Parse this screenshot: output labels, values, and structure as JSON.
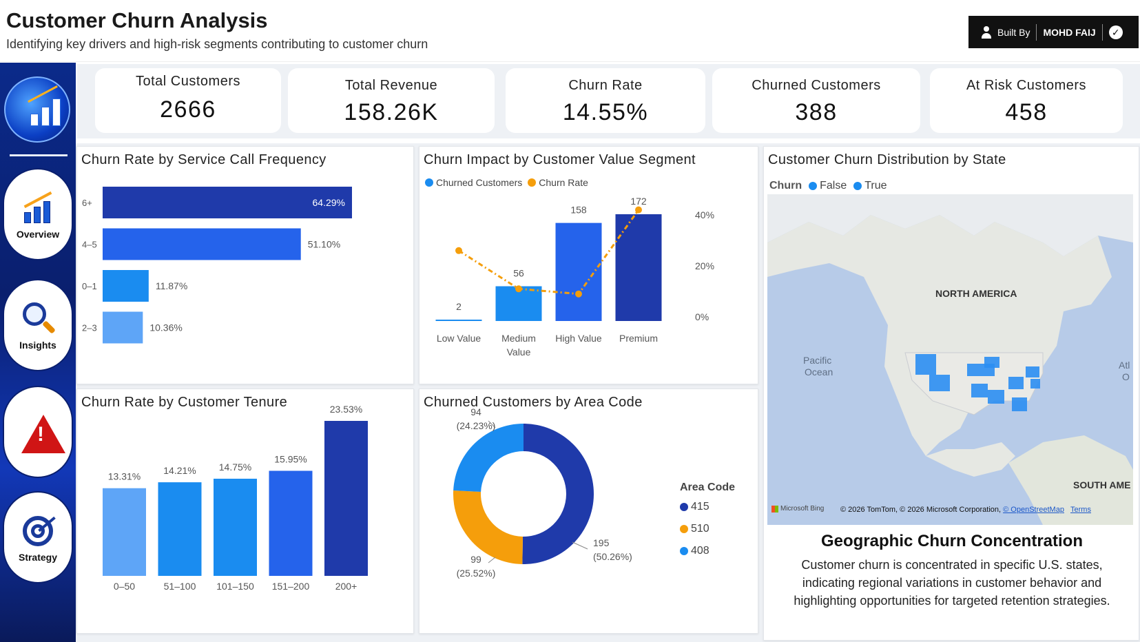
{
  "header": {
    "title": "Customer Churn Analysis",
    "subtitle": "Identifying key drivers and high-risk segments contributing to customer churn",
    "built_by_label": "Built By",
    "built_by_name": "MOHD FAIJ"
  },
  "sidebar": {
    "items": [
      {
        "label": "Overview",
        "icon": "bar-chart-growth-icon"
      },
      {
        "label": "Insights",
        "icon": "magnifier-icon"
      },
      {
        "label": "",
        "icon": "warning-icon"
      },
      {
        "label": "Strategy",
        "icon": "target-icon"
      }
    ]
  },
  "kpis": [
    {
      "label": "Total Customers",
      "value": "2666"
    },
    {
      "label": "Total Revenue",
      "value": "158.26K"
    },
    {
      "label": "Churn Rate",
      "value": "14.55%"
    },
    {
      "label": "Churned Customers",
      "value": "388"
    },
    {
      "label": "At Risk Customers",
      "value": "458"
    }
  ],
  "colors": {
    "dark_blue": "#1f3aaa",
    "blue": "#2563eb",
    "mid_blue": "#1a8cf0",
    "light_blue": "#5ea5f7",
    "orange": "#f59e0b"
  },
  "chart_data": [
    {
      "type": "bar",
      "orientation": "horizontal",
      "title": "Churn Rate by Service Call Frequency",
      "categories": [
        "6+",
        "4–5",
        "0–1",
        "2–3"
      ],
      "values": [
        64.29,
        51.1,
        11.87,
        10.36
      ],
      "labels": [
        "64.29%",
        "51.10%",
        "11.87%",
        "10.36%"
      ]
    },
    {
      "type": "bar",
      "title": "Churn Impact by Customer Value Segment",
      "categories": [
        "Low Value",
        "Medium Value",
        "High Value",
        "Premium"
      ],
      "category_lines": [
        [
          "Low Value"
        ],
        [
          "Medium",
          "Value"
        ],
        [
          "High Value"
        ],
        [
          "Premium"
        ]
      ],
      "series": [
        {
          "name": "Churned Customers",
          "type": "bar",
          "values": [
            2,
            56,
            158,
            172
          ],
          "labels": [
            "2",
            "56",
            "158",
            "172"
          ]
        },
        {
          "name": "Churn Rate",
          "type": "line",
          "values": [
            26,
            11,
            9,
            42
          ]
        }
      ],
      "y2_ticks": [
        "0%",
        "20%",
        "40%"
      ],
      "y2lim": [
        0,
        40
      ]
    },
    {
      "type": "bar",
      "title": "Churn Rate by Customer Tenure",
      "categories": [
        "0–50",
        "51–100",
        "101–150",
        "151–200",
        "200+"
      ],
      "values": [
        13.31,
        14.21,
        14.75,
        15.95,
        23.53
      ],
      "labels": [
        "13.31%",
        "14.21%",
        "14.75%",
        "15.95%",
        "23.53%"
      ]
    },
    {
      "type": "pie",
      "title": "Churned Customers by Area Code",
      "legend_title": "Area Code",
      "slices": [
        {
          "name": "415",
          "value": 195,
          "label": "195",
          "pct": "(50.26%)"
        },
        {
          "name": "510",
          "value": 99,
          "label": "99",
          "pct": "(25.52%)"
        },
        {
          "name": "408",
          "value": 94,
          "label": "94",
          "pct": "(24.23%)"
        }
      ]
    }
  ],
  "map_panel": {
    "title": "Customer Churn Distribution by State",
    "legend_title": "Churn",
    "legend_items": [
      "False",
      "True"
    ],
    "labels": {
      "north_america": "NORTH AMERICA",
      "pacific_1": "Pacific",
      "pacific_2": "Ocean",
      "atl_1": "Atl",
      "atl_2": "O",
      "south_america": "SOUTH AME"
    },
    "attribution": "© 2026 TomTom, © 2026 Microsoft Corporation,",
    "osm_link": "© OpenStreetMap",
    "terms_link": "Terms",
    "bing_label": "Microsoft Bing",
    "summary_title": "Geographic Churn Concentration",
    "summary_body": "Customer churn is concentrated in specific U.S. states, indicating regional variations in customer behavior and highlighting opportunities for targeted retention strategies."
  }
}
